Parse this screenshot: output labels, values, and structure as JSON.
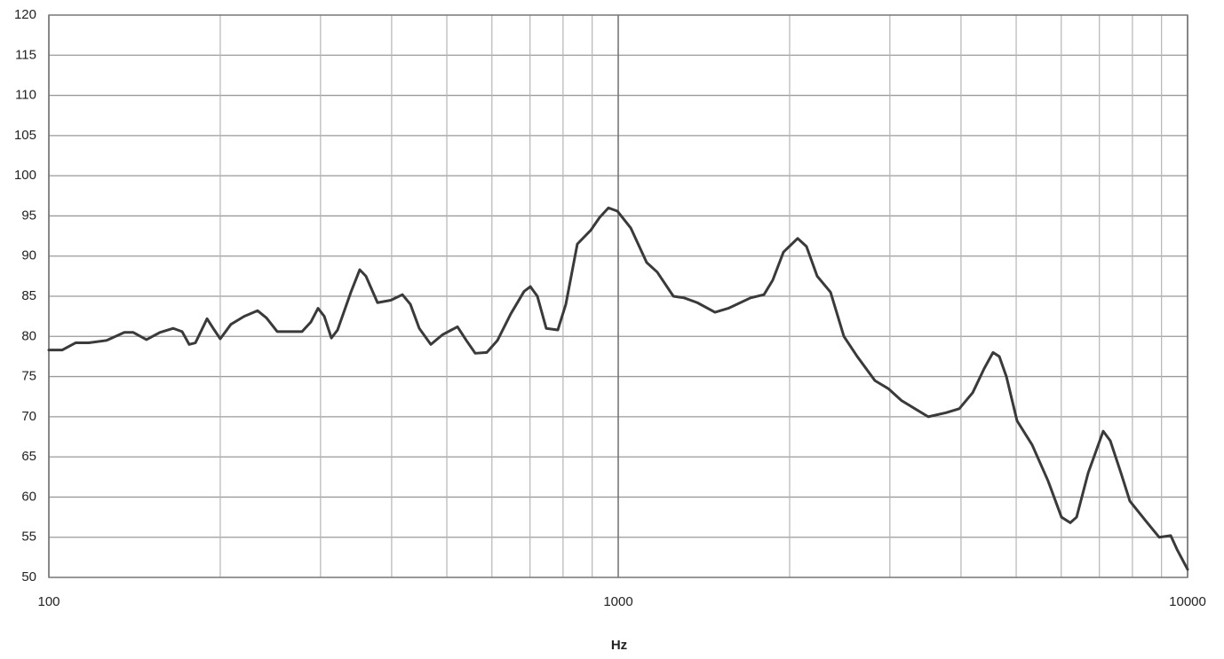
{
  "chart_data": {
    "type": "line",
    "xlabel": "Hz",
    "log_x": true,
    "xlim": [
      100,
      10000
    ],
    "xticks": [
      100,
      1000,
      10000
    ],
    "xminor": [
      200,
      300,
      400,
      500,
      600,
      700,
      800,
      900,
      2000,
      3000,
      4000,
      5000,
      6000,
      7000,
      8000,
      9000
    ],
    "ylim": [
      50,
      120
    ],
    "yticks": [
      50,
      55,
      60,
      65,
      70,
      75,
      80,
      85,
      90,
      95,
      100,
      105,
      110,
      115,
      120
    ],
    "grid": true,
    "color": "#3a3a3a",
    "x": [
      100,
      105.5,
      111.4,
      117.5,
      126.3,
      135.7,
      140.7,
      148.4,
      156.7,
      165.4,
      171.4,
      176.4,
      180.9,
      189.6,
      194.4,
      200,
      208.8,
      220.4,
      232.6,
      241.1,
      251.8,
      263.8,
      278.4,
      288.6,
      297,
      304.6,
      313.5,
      321.4,
      339.2,
      351.6,
      360.5,
      377.8,
      398.7,
      417.8,
      431.5,
      447.3,
      468.7,
      491.1,
      522,
      541.1,
      560.9,
      587.7,
      613.6,
      647.5,
      683.3,
      700.9,
      721.1,
      747.5,
      783.2,
      809.1,
      847.6,
      894.6,
      927.3,
      961.2,
      996.3,
      1052,
      1122,
      1171,
      1250,
      1305,
      1377,
      1479,
      1561,
      1708,
      1803,
      1868,
      1951,
      2066,
      2141,
      2236,
      2360,
      2491,
      2629,
      2824,
      2981,
      3146,
      3320,
      3504,
      3765,
      3972,
      4194,
      4393,
      4553,
      4670,
      4806,
      5017,
      5333,
      5689,
      6005,
      6223,
      6383,
      6689,
      7109,
      7316,
      7638,
      7918,
      8451,
      8913,
      9341,
      9579,
      10000
    ],
    "values": [
      78.3,
      78.3,
      79.2,
      79.2,
      79.5,
      80.5,
      80.5,
      79.6,
      80.5,
      81.0,
      80.6,
      79.0,
      79.2,
      82.2,
      81.0,
      79.7,
      81.5,
      82.5,
      83.2,
      82.3,
      80.6,
      80.6,
      80.6,
      81.8,
      83.5,
      82.5,
      79.8,
      80.8,
      85.5,
      88.3,
      87.5,
      84.2,
      84.5,
      85.2,
      84.0,
      81.0,
      79.0,
      80.2,
      81.2,
      79.5,
      77.9,
      78.0,
      79.5,
      82.8,
      85.6,
      86.2,
      85.0,
      81.0,
      80.8,
      84.0,
      91.5,
      93.2,
      94.8,
      96.0,
      95.6,
      93.5,
      89.2,
      88.0,
      85.0,
      84.8,
      84.2,
      83.0,
      83.5,
      84.8,
      85.2,
      87.0,
      90.5,
      92.2,
      91.2,
      87.5,
      85.5,
      80.0,
      77.5,
      74.5,
      73.5,
      72.0,
      71.0,
      70.0,
      70.5,
      71.0,
      73.0,
      76.0,
      78.0,
      77.5,
      75.0,
      69.5,
      66.5,
      62.0,
      57.5,
      56.8,
      57.5,
      63.0,
      68.2,
      67.0,
      63.0,
      59.5,
      57.0,
      55.0,
      55.2,
      53.5,
      51.0
    ]
  }
}
